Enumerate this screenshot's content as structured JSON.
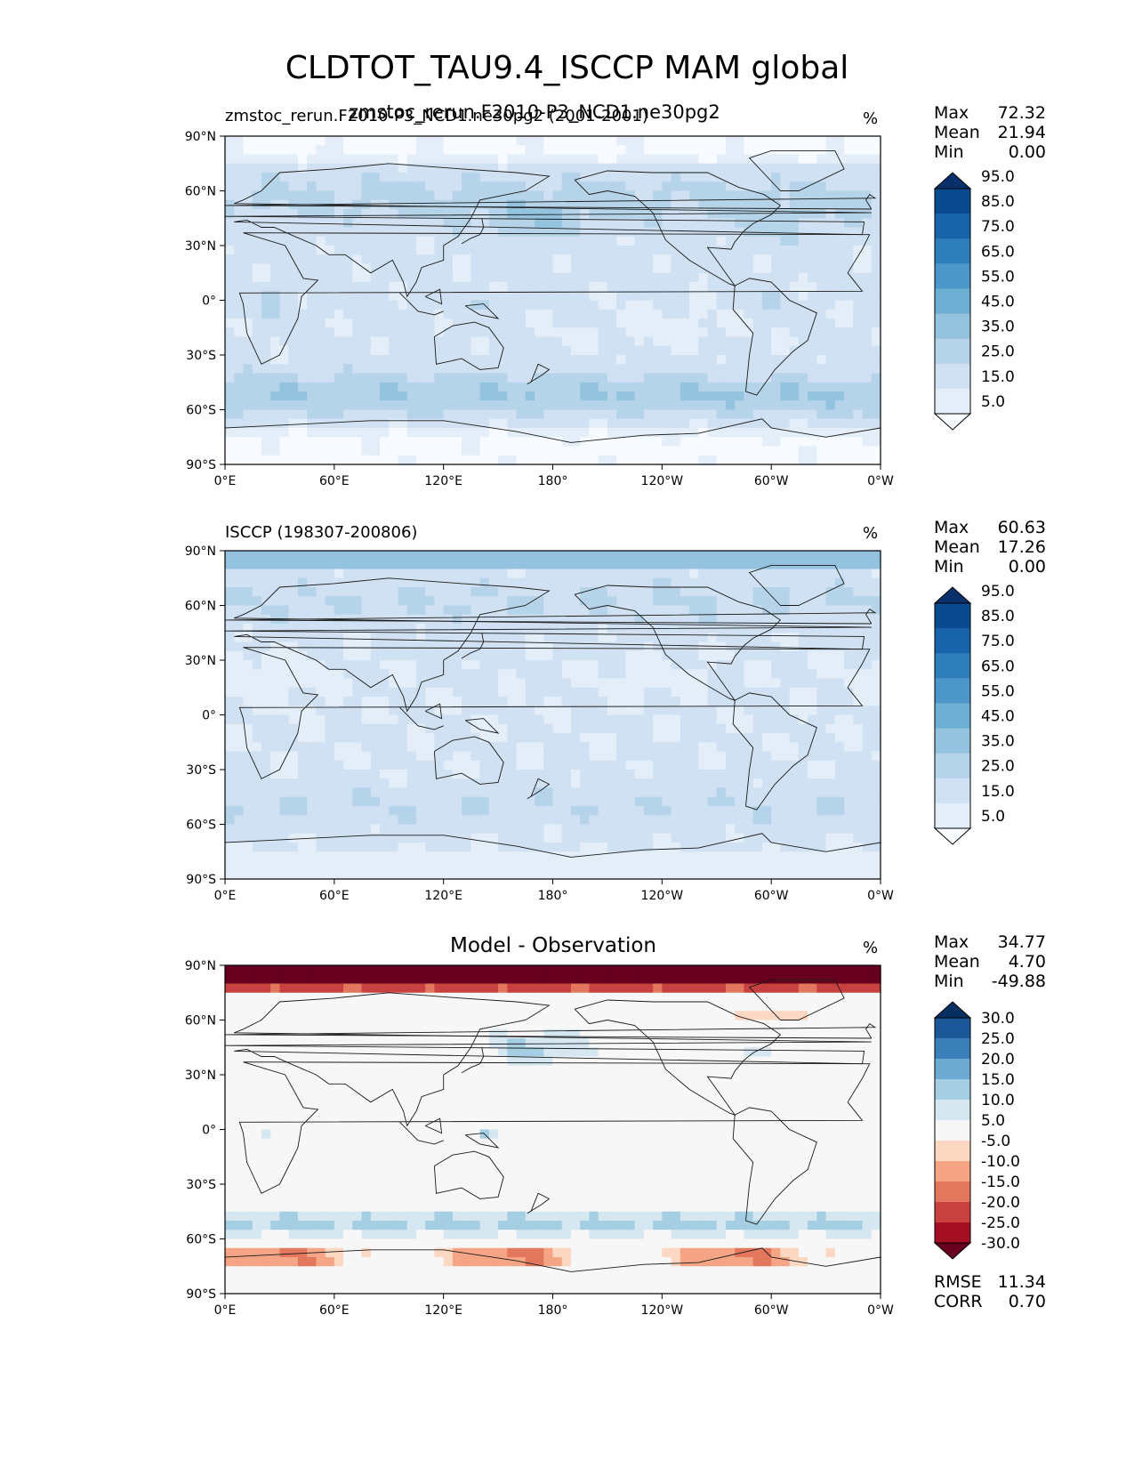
{
  "title": "CLDTOT_TAU9.4_ISCCP MAM global",
  "colors": {
    "blues": [
      "#f7fbff",
      "#e3eef9",
      "#cfe1f2",
      "#b5d4e9",
      "#93c3df",
      "#6daed5",
      "#4b97c9",
      "#2f7ebc",
      "#1864aa",
      "#0a4a90",
      "#08306b"
    ],
    "diff": [
      "#67001f",
      "#a50f24",
      "#c8403f",
      "#e3775d",
      "#f5a585",
      "#fcd7c2",
      "#f7f7f7",
      "#d5e7f1",
      "#a6cee3",
      "#6dabd2",
      "#3a7fb8",
      "#1a589a",
      "#053061"
    ]
  },
  "chart_data": [
    {
      "type": "heatmap",
      "id": "test",
      "title": "zmstoc_rerun.F2010-P3_NCD1.ne30pg2",
      "overlap_title": "zmstoc_rerun.F2010-P3_NCD1.ne30pg2 (2001-2001)",
      "units": "%",
      "stats": {
        "Max": "72.32",
        "Mean": "21.94",
        "Min": "0.00"
      },
      "levels": [
        "5.0",
        "15.0",
        "25.0",
        "35.0",
        "45.0",
        "55.0",
        "65.0",
        "75.0",
        "85.0",
        "95.0"
      ],
      "lat_ticks": [
        "90°N",
        "60°N",
        "30°N",
        "0°",
        "30°S",
        "60°S",
        "90°S"
      ],
      "lon_ticks": [
        "0°E",
        "60°E",
        "120°E",
        "180°",
        "120°W",
        "60°W",
        "0°W"
      ]
    },
    {
      "type": "heatmap",
      "id": "ref",
      "title": "ISCCP (198307-200806)",
      "units": "%",
      "stats": {
        "Max": "60.63",
        "Mean": "17.26",
        "Min": "0.00"
      },
      "levels": [
        "5.0",
        "15.0",
        "25.0",
        "35.0",
        "45.0",
        "55.0",
        "65.0",
        "75.0",
        "85.0",
        "95.0"
      ],
      "lat_ticks": [
        "90°N",
        "60°N",
        "30°N",
        "0°",
        "30°S",
        "60°S",
        "90°S"
      ],
      "lon_ticks": [
        "0°E",
        "60°E",
        "120°E",
        "180°",
        "120°W",
        "60°W",
        "0°W"
      ]
    },
    {
      "type": "heatmap",
      "id": "diff",
      "title": "Model - Observation",
      "units": "%",
      "stats": {
        "Max": "34.77",
        "Mean": "4.70",
        "Min": "-49.88"
      },
      "metrics": {
        "RMSE": "11.34",
        "CORR": "0.70"
      },
      "levels": [
        "-30.0",
        "-25.0",
        "-20.0",
        "-15.0",
        "-10.0",
        "-5.0",
        "5.0",
        "10.0",
        "15.0",
        "20.0",
        "25.0",
        "30.0"
      ],
      "lat_ticks": [
        "90°N",
        "60°N",
        "30°N",
        "0°",
        "30°S",
        "60°S",
        "90°S"
      ],
      "lon_ticks": [
        "0°E",
        "60°E",
        "120°E",
        "180°",
        "120°W",
        "60°W",
        "0°W"
      ]
    }
  ]
}
